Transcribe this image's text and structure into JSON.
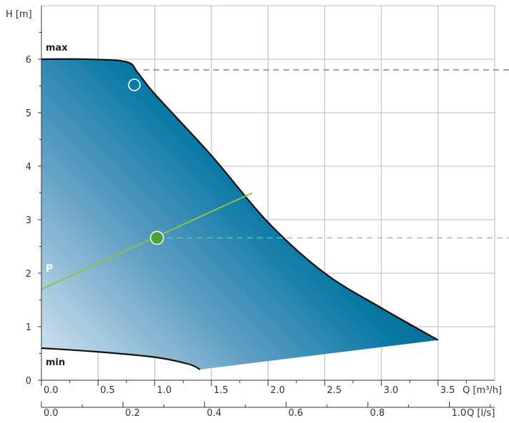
{
  "chart_data": {
    "type": "area",
    "title": "",
    "y_axis": {
      "label": "H [m]",
      "ticks": [
        "0",
        "1",
        "2",
        "3",
        "4",
        "5",
        "6"
      ],
      "range": [
        0,
        7
      ]
    },
    "x_axis_primary": {
      "label": "Q [m³/h]",
      "ticks": [
        "0.0",
        "0.5",
        "1.0",
        "1.5",
        "2.0",
        "2.5",
        "3.0",
        "3.5"
      ],
      "range": [
        0,
        4
      ]
    },
    "x_axis_secondary": {
      "label": "Q [l/s]",
      "ticks": [
        "0.0",
        "0.2",
        "0.4",
        "0.6",
        "0.8",
        "1.0"
      ],
      "values": [
        0,
        0.2,
        0.4,
        0.6,
        0.8,
        1.0
      ]
    },
    "grid": true,
    "series": [
      {
        "name": "max",
        "x": [
          0,
          0.4,
          0.75,
          0.85,
          1.0,
          1.5,
          2.0,
          2.5,
          3.0,
          3.5
        ],
        "y": [
          6.0,
          6.0,
          5.95,
          5.75,
          5.35,
          4.2,
          2.95,
          2.0,
          1.35,
          0.75
        ]
      },
      {
        "name": "min",
        "x": [
          0,
          0.5,
          1.0,
          1.3,
          1.4
        ],
        "y": [
          0.6,
          0.53,
          0.43,
          0.3,
          0.2
        ]
      },
      {
        "name": "P",
        "x": [
          0,
          1.86
        ],
        "y": [
          1.7,
          3.5
        ]
      }
    ],
    "lower_boundary": {
      "x": [
        1.4,
        3.5
      ],
      "y": [
        0.2,
        0.75
      ]
    },
    "points": [
      {
        "x": 0.82,
        "y": 5.52,
        "style": "hollow"
      },
      {
        "x": 1.02,
        "y": 2.66,
        "style": "filled"
      }
    ],
    "reference_lines": [
      {
        "y": 5.8,
        "x_start": 0.9,
        "color": "#4a6f9e"
      },
      {
        "y": 2.66,
        "x_start": 1.02,
        "color": "#7ccf5a"
      }
    ],
    "labels": {
      "max": "max",
      "min": "min",
      "P": "P"
    },
    "colors": {
      "fill_dark": "#035a86",
      "fill_mid": "#0a7aa6",
      "fill_light": "#dce9f2",
      "outline": "#111111",
      "p_line": "#8ac24a",
      "op_point": "#4aa336",
      "grid": "#b8b8b8"
    }
  }
}
